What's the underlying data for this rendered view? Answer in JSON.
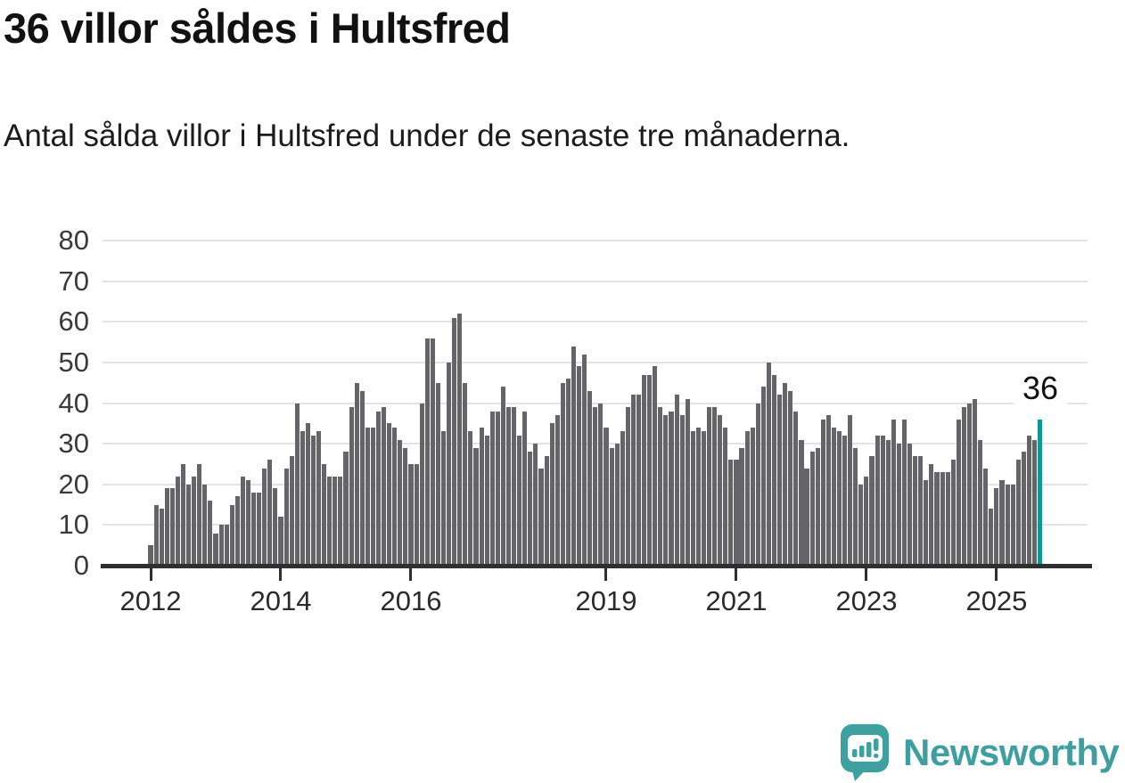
{
  "header": {
    "title": "36 villor såldes i Hultsfred",
    "subtitle": "Antal sålda villor i Hultsfred under de senaste tre månaderna."
  },
  "annotation": {
    "label": "36"
  },
  "footer": {
    "brand": "Newsworthy"
  },
  "chart_data": {
    "type": "bar",
    "title": "36 villor såldes i Hultsfred",
    "subtitle": "Antal sålda villor i Hultsfred under de senaste tre månaderna.",
    "x_monthly_start": "2012-01",
    "x_monthly_end": "2025-09",
    "ylim": [
      0,
      80
    ],
    "grid": true,
    "legend": false,
    "y_ticks": [
      0,
      10,
      20,
      30,
      40,
      50,
      60,
      70,
      80
    ],
    "x_tick_years": [
      2012,
      2014,
      2016,
      2019,
      2021,
      2023,
      2025
    ],
    "highlight_last_value": 36,
    "colors": {
      "bar": "#646469",
      "highlight": "#0d9a94",
      "grid": "#e3e3e3",
      "axis": "#2f2f2f",
      "brand": "#3f9ea0"
    },
    "values": [
      5,
      15,
      14,
      19,
      19,
      22,
      25,
      20,
      22,
      25,
      20,
      16,
      8,
      10,
      10,
      15,
      17,
      22,
      21,
      18,
      18,
      24,
      26,
      19,
      12,
      24,
      27,
      40,
      33,
      35,
      32,
      33,
      25,
      22,
      22,
      22,
      28,
      39,
      45,
      43,
      34,
      34,
      38,
      39,
      35,
      34,
      31,
      29,
      25,
      25,
      40,
      56,
      56,
      45,
      33,
      50,
      61,
      62,
      45,
      33,
      29,
      34,
      32,
      38,
      38,
      44,
      39,
      39,
      32,
      38,
      28,
      30,
      24,
      27,
      35,
      37,
      45,
      46,
      54,
      49,
      52,
      43,
      39,
      40,
      34,
      29,
      30,
      33,
      39,
      42,
      42,
      47,
      47,
      49,
      39,
      37,
      38,
      42,
      37,
      41,
      33,
      34,
      33,
      39,
      39,
      37,
      34,
      26,
      26,
      29,
      33,
      34,
      40,
      44,
      50,
      47,
      42,
      45,
      43,
      38,
      31,
      24,
      28,
      29,
      36,
      37,
      34,
      33,
      32,
      37,
      29,
      20,
      22,
      27,
      32,
      32,
      31,
      36,
      30,
      36,
      30,
      27,
      27,
      21,
      25,
      23,
      23,
      23,
      26,
      36,
      39,
      40,
      41,
      31,
      24,
      14,
      19,
      21,
      20,
      20,
      26,
      28,
      32,
      31,
      36
    ]
  }
}
